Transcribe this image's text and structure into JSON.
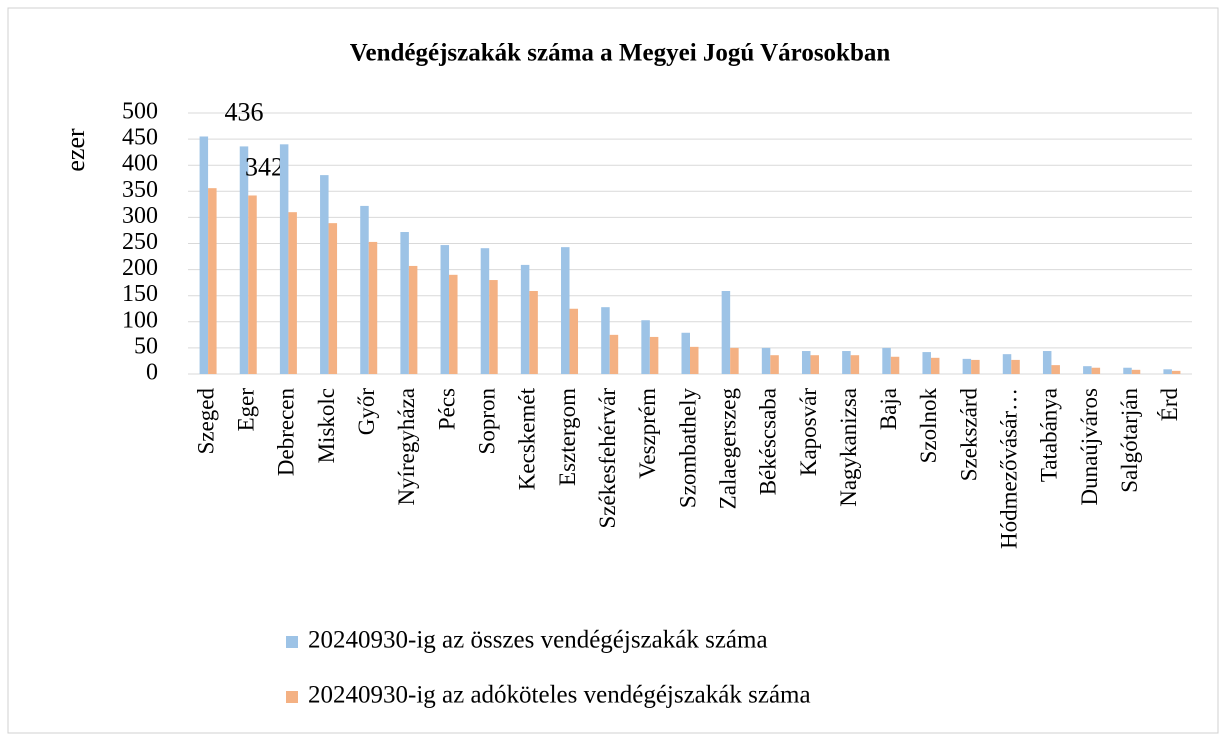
{
  "chart_data": {
    "type": "bar",
    "title": "Vendégéjszakák száma a Megyei Jogú Városokban",
    "y_label": "ezer",
    "categories": [
      "Szeged",
      "Eger",
      "Debrecen",
      "Miskolc",
      "Győr",
      "Nyíregyháza",
      "Pécs",
      "Sopron",
      "Kecskemét",
      "Esztergom",
      "Székesfehérvár",
      "Veszprém",
      "Szombathely",
      "Zalaegerszeg",
      "Békéscsaba",
      "Kaposvár",
      "Nagykanizsa",
      "Baja",
      "Szolnok",
      "Szekszárd",
      "Hódmezővásár…",
      "Tatabánya",
      "Dunaújváros",
      "Salgótarján",
      "Érd"
    ],
    "series": [
      {
        "name": "20240930-ig az összes vendégéjszakák száma",
        "color": "#9dc3e6",
        "values": [
          455,
          436,
          440,
          381,
          322,
          272,
          247,
          241,
          209,
          243,
          128,
          103,
          79,
          159,
          50,
          44,
          44,
          50,
          42,
          29,
          38,
          44,
          15,
          12,
          9
        ],
        "value_labels": [
          null,
          "436",
          null,
          null,
          null,
          null,
          null,
          null,
          null,
          null,
          null,
          null,
          null,
          null,
          null,
          null,
          null,
          null,
          null,
          null,
          null,
          null,
          null,
          null,
          null
        ]
      },
      {
        "name": "20240930-ig az adóköteles vendégéjszakák száma",
        "color": "#f4b183",
        "values": [
          356,
          342,
          310,
          289,
          253,
          207,
          190,
          180,
          159,
          125,
          75,
          71,
          52,
          50,
          36,
          36,
          36,
          33,
          31,
          27,
          27,
          17,
          12,
          8,
          6
        ],
        "value_labels": [
          null,
          "342",
          null,
          null,
          null,
          null,
          null,
          null,
          null,
          null,
          null,
          null,
          null,
          null,
          null,
          null,
          null,
          null,
          null,
          null,
          null,
          null,
          null,
          null,
          null
        ]
      }
    ],
    "ylim": [
      0,
      500
    ],
    "yticks": [
      0,
      50,
      100,
      150,
      200,
      250,
      300,
      350,
      400,
      450,
      500
    ],
    "grid": true
  }
}
